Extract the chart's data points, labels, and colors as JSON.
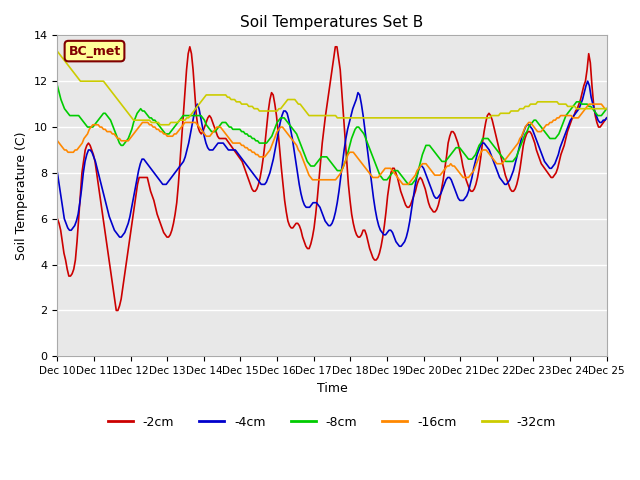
{
  "title": "Soil Temperatures Set B",
  "xlabel": "Time",
  "ylabel": "Soil Temperature (C)",
  "annotation": "BC_met",
  "ylim": [
    0,
    14
  ],
  "yticks": [
    0,
    2,
    4,
    6,
    8,
    10,
    12,
    14
  ],
  "background_color": "#ffffff",
  "plot_bg_color": "#e8e8e8",
  "grid_color": "#ffffff",
  "colors": {
    "-2cm": "#cc0000",
    "-4cm": "#0000cc",
    "-8cm": "#00cc00",
    "-16cm": "#ff8800",
    "-32cm": "#cccc00"
  },
  "x_labels": [
    "Dec 10",
    "Dec 11",
    "Dec 12",
    "Dec 13",
    "Dec 14",
    "Dec 15",
    "Dec 16",
    "Dec 17",
    "Dec 18",
    "Dec 19",
    "Dec 20",
    "Dec 21",
    "Dec 22",
    "Dec 23",
    "Dec 24",
    "Dec 25"
  ],
  "series": {
    "-2cm": [
      6.0,
      5.8,
      5.5,
      5.0,
      4.5,
      4.2,
      3.8,
      3.5,
      3.5,
      3.6,
      3.8,
      4.2,
      5.0,
      6.0,
      7.0,
      8.0,
      8.5,
      9.0,
      9.2,
      9.3,
      9.2,
      9.0,
      8.8,
      8.5,
      8.0,
      7.5,
      7.0,
      6.5,
      6.0,
      5.5,
      5.0,
      4.5,
      4.0,
      3.5,
      3.0,
      2.5,
      2.0,
      2.0,
      2.2,
      2.5,
      3.0,
      3.5,
      4.0,
      4.5,
      5.0,
      5.5,
      6.0,
      6.5,
      7.0,
      7.5,
      7.8,
      7.8,
      7.8,
      7.8,
      7.8,
      7.8,
      7.5,
      7.2,
      7.0,
      6.8,
      6.5,
      6.2,
      6.0,
      5.8,
      5.6,
      5.4,
      5.3,
      5.2,
      5.2,
      5.3,
      5.5,
      5.8,
      6.2,
      6.7,
      7.5,
      8.5,
      9.5,
      10.5,
      11.5,
      12.5,
      13.2,
      13.5,
      13.2,
      12.5,
      11.5,
      10.5,
      10.0,
      9.8,
      9.7,
      9.8,
      10.0,
      10.2,
      10.4,
      10.5,
      10.4,
      10.2,
      10.0,
      9.8,
      9.6,
      9.5,
      9.5,
      9.5,
      9.5,
      9.5,
      9.4,
      9.3,
      9.2,
      9.1,
      9.0,
      8.9,
      8.8,
      8.7,
      8.6,
      8.5,
      8.3,
      8.1,
      7.9,
      7.7,
      7.5,
      7.3,
      7.2,
      7.2,
      7.3,
      7.5,
      7.8,
      8.2,
      8.7,
      9.3,
      10.0,
      10.7,
      11.2,
      11.5,
      11.4,
      11.0,
      10.5,
      9.8,
      9.0,
      8.2,
      7.5,
      6.8,
      6.3,
      5.9,
      5.7,
      5.6,
      5.6,
      5.7,
      5.8,
      5.8,
      5.7,
      5.5,
      5.2,
      5.0,
      4.8,
      4.7,
      4.7,
      4.9,
      5.2,
      5.6,
      6.2,
      6.9,
      7.7,
      8.5,
      9.3,
      9.9,
      10.5,
      11.0,
      11.5,
      12.0,
      12.5,
      13.0,
      13.5,
      13.5,
      13.0,
      12.5,
      11.5,
      10.5,
      9.5,
      8.5,
      7.5,
      6.8,
      6.2,
      5.8,
      5.5,
      5.3,
      5.2,
      5.2,
      5.3,
      5.5,
      5.5,
      5.3,
      5.0,
      4.7,
      4.5,
      4.3,
      4.2,
      4.2,
      4.3,
      4.5,
      4.8,
      5.2,
      5.7,
      6.3,
      7.0,
      7.5,
      8.0,
      8.2,
      8.2,
      8.0,
      7.8,
      7.5,
      7.2,
      7.0,
      6.8,
      6.6,
      6.5,
      6.5,
      6.6,
      6.8,
      7.0,
      7.2,
      7.5,
      7.7,
      7.8,
      7.7,
      7.5,
      7.3,
      7.0,
      6.7,
      6.5,
      6.4,
      6.3,
      6.3,
      6.4,
      6.6,
      6.9,
      7.3,
      7.7,
      8.2,
      8.7,
      9.3,
      9.6,
      9.8,
      9.8,
      9.7,
      9.5,
      9.3,
      9.0,
      8.7,
      8.3,
      8.0,
      7.7,
      7.5,
      7.3,
      7.2,
      7.2,
      7.3,
      7.5,
      7.8,
      8.2,
      8.7,
      9.3,
      9.8,
      10.2,
      10.5,
      10.6,
      10.5,
      10.3,
      10.0,
      9.7,
      9.4,
      9.1,
      8.8,
      8.5,
      8.2,
      7.9,
      7.7,
      7.5,
      7.3,
      7.2,
      7.2,
      7.3,
      7.5,
      7.8,
      8.2,
      8.7,
      9.2,
      9.5,
      9.7,
      9.8,
      9.8,
      9.7,
      9.5,
      9.3,
      9.0,
      8.8,
      8.6,
      8.4,
      8.3,
      8.2,
      8.1,
      8.0,
      7.9,
      7.8,
      7.8,
      7.9,
      8.0,
      8.2,
      8.5,
      8.8,
      9.0,
      9.2,
      9.5,
      9.8,
      10.0,
      10.2,
      10.4,
      10.5,
      10.7,
      10.8,
      11.0,
      11.2,
      11.5,
      11.8,
      12.0,
      12.5,
      13.2,
      12.8,
      11.8,
      11.0,
      10.5,
      10.2,
      10.0,
      10.0,
      10.1,
      10.2,
      10.3,
      10.4
    ],
    "-4cm": [
      8.0,
      7.5,
      7.0,
      6.5,
      6.0,
      5.8,
      5.6,
      5.5,
      5.5,
      5.6,
      5.7,
      5.9,
      6.2,
      6.7,
      7.3,
      8.0,
      8.5,
      8.8,
      9.0,
      9.0,
      8.9,
      8.7,
      8.5,
      8.2,
      7.9,
      7.6,
      7.3,
      7.0,
      6.7,
      6.4,
      6.1,
      5.9,
      5.7,
      5.5,
      5.4,
      5.3,
      5.2,
      5.2,
      5.3,
      5.4,
      5.6,
      5.8,
      6.1,
      6.5,
      6.9,
      7.3,
      7.7,
      8.1,
      8.4,
      8.6,
      8.6,
      8.5,
      8.4,
      8.3,
      8.2,
      8.1,
      8.0,
      7.9,
      7.8,
      7.7,
      7.6,
      7.5,
      7.5,
      7.5,
      7.6,
      7.7,
      7.8,
      7.9,
      8.0,
      8.1,
      8.2,
      8.3,
      8.4,
      8.5,
      8.7,
      9.0,
      9.3,
      9.7,
      10.1,
      10.5,
      10.8,
      11.0,
      10.8,
      10.4,
      10.0,
      9.6,
      9.3,
      9.1,
      9.0,
      9.0,
      9.0,
      9.1,
      9.2,
      9.3,
      9.3,
      9.3,
      9.3,
      9.2,
      9.1,
      9.0,
      9.0,
      9.0,
      9.0,
      9.0,
      8.9,
      8.8,
      8.7,
      8.6,
      8.5,
      8.4,
      8.3,
      8.2,
      8.1,
      8.0,
      7.9,
      7.8,
      7.7,
      7.6,
      7.5,
      7.5,
      7.5,
      7.6,
      7.8,
      8.0,
      8.3,
      8.6,
      9.0,
      9.4,
      9.8,
      10.2,
      10.5,
      10.7,
      10.7,
      10.6,
      10.3,
      9.9,
      9.5,
      9.0,
      8.5,
      8.0,
      7.5,
      7.1,
      6.8,
      6.6,
      6.5,
      6.5,
      6.5,
      6.6,
      6.7,
      6.7,
      6.7,
      6.6,
      6.5,
      6.3,
      6.1,
      5.9,
      5.8,
      5.7,
      5.7,
      5.8,
      6.0,
      6.3,
      6.7,
      7.2,
      7.8,
      8.4,
      9.0,
      9.5,
      9.9,
      10.2,
      10.5,
      10.8,
      11.0,
      11.2,
      11.5,
      11.4,
      11.0,
      10.5,
      9.9,
      9.3,
      8.7,
      8.1,
      7.5,
      6.9,
      6.4,
      6.0,
      5.7,
      5.5,
      5.4,
      5.3,
      5.3,
      5.4,
      5.5,
      5.5,
      5.4,
      5.2,
      5.0,
      4.9,
      4.8,
      4.8,
      4.9,
      5.0,
      5.2,
      5.5,
      5.9,
      6.4,
      6.9,
      7.4,
      7.8,
      8.1,
      8.3,
      8.3,
      8.2,
      8.0,
      7.8,
      7.6,
      7.4,
      7.2,
      7.0,
      6.9,
      6.9,
      7.0,
      7.1,
      7.3,
      7.5,
      7.7,
      7.8,
      7.8,
      7.7,
      7.5,
      7.3,
      7.1,
      6.9,
      6.8,
      6.8,
      6.8,
      6.9,
      7.0,
      7.2,
      7.5,
      7.8,
      8.2,
      8.5,
      8.8,
      9.0,
      9.2,
      9.3,
      9.3,
      9.2,
      9.1,
      9.0,
      8.8,
      8.6,
      8.4,
      8.2,
      8.0,
      7.8,
      7.7,
      7.6,
      7.5,
      7.5,
      7.6,
      7.7,
      7.9,
      8.1,
      8.4,
      8.7,
      9.0,
      9.3,
      9.6,
      9.8,
      10.0,
      10.1,
      10.1,
      10.0,
      9.9,
      9.7,
      9.5,
      9.3,
      9.1,
      8.9,
      8.7,
      8.5,
      8.4,
      8.3,
      8.2,
      8.2,
      8.3,
      8.4,
      8.6,
      8.8,
      9.1,
      9.3,
      9.5,
      9.7,
      9.9,
      10.1,
      10.3,
      10.4,
      10.5,
      10.6,
      10.7,
      10.8,
      11.0,
      11.2,
      11.5,
      11.8,
      12.0,
      11.8,
      11.3,
      11.0,
      10.7,
      10.5,
      10.3,
      10.2,
      10.2,
      10.3,
      10.3,
      10.4
    ],
    "-8cm": [
      11.8,
      11.5,
      11.2,
      11.0,
      10.8,
      10.7,
      10.6,
      10.5,
      10.5,
      10.5,
      10.5,
      10.5,
      10.5,
      10.4,
      10.3,
      10.2,
      10.1,
      10.0,
      10.0,
      10.0,
      10.0,
      10.1,
      10.2,
      10.3,
      10.4,
      10.5,
      10.6,
      10.6,
      10.5,
      10.4,
      10.3,
      10.1,
      9.9,
      9.7,
      9.5,
      9.3,
      9.2,
      9.2,
      9.3,
      9.4,
      9.5,
      9.7,
      9.9,
      10.2,
      10.4,
      10.6,
      10.7,
      10.8,
      10.7,
      10.7,
      10.6,
      10.5,
      10.4,
      10.4,
      10.3,
      10.3,
      10.2,
      10.1,
      10.0,
      9.9,
      9.8,
      9.7,
      9.7,
      9.7,
      9.8,
      9.9,
      10.0,
      10.1,
      10.2,
      10.3,
      10.4,
      10.5,
      10.5,
      10.5,
      10.5,
      10.5,
      10.5,
      10.5,
      10.5,
      10.5,
      10.5,
      10.5,
      10.4,
      10.3,
      10.1,
      10.0,
      9.9,
      9.8,
      9.8,
      9.8,
      9.9,
      10.0,
      10.1,
      10.2,
      10.2,
      10.2,
      10.1,
      10.0,
      10.0,
      9.9,
      9.9,
      9.9,
      9.9,
      9.9,
      9.8,
      9.8,
      9.7,
      9.7,
      9.6,
      9.6,
      9.5,
      9.5,
      9.4,
      9.4,
      9.3,
      9.3,
      9.3,
      9.3,
      9.3,
      9.4,
      9.5,
      9.6,
      9.8,
      10.0,
      10.2,
      10.3,
      10.4,
      10.4,
      10.4,
      10.3,
      10.2,
      10.1,
      10.0,
      9.9,
      9.8,
      9.7,
      9.5,
      9.3,
      9.1,
      8.9,
      8.7,
      8.5,
      8.4,
      8.3,
      8.3,
      8.3,
      8.4,
      8.5,
      8.6,
      8.7,
      8.7,
      8.7,
      8.7,
      8.6,
      8.5,
      8.4,
      8.3,
      8.2,
      8.1,
      8.1,
      8.1,
      8.2,
      8.4,
      8.6,
      8.9,
      9.2,
      9.5,
      9.7,
      9.9,
      10.0,
      10.0,
      9.9,
      9.8,
      9.7,
      9.5,
      9.3,
      9.1,
      8.9,
      8.7,
      8.5,
      8.3,
      8.1,
      7.9,
      7.8,
      7.7,
      7.7,
      7.7,
      7.8,
      7.9,
      8.0,
      8.1,
      8.1,
      8.1,
      8.0,
      7.9,
      7.8,
      7.7,
      7.6,
      7.5,
      7.5,
      7.5,
      7.6,
      7.7,
      7.9,
      8.2,
      8.5,
      8.8,
      9.0,
      9.2,
      9.2,
      9.2,
      9.1,
      9.0,
      8.9,
      8.8,
      8.7,
      8.6,
      8.5,
      8.5,
      8.5,
      8.6,
      8.7,
      8.8,
      8.9,
      9.0,
      9.1,
      9.1,
      9.1,
      9.0,
      8.9,
      8.8,
      8.7,
      8.6,
      8.6,
      8.6,
      8.7,
      8.8,
      9.0,
      9.2,
      9.3,
      9.5,
      9.5,
      9.5,
      9.5,
      9.4,
      9.3,
      9.2,
      9.1,
      9.0,
      8.9,
      8.8,
      8.7,
      8.6,
      8.5,
      8.5,
      8.5,
      8.5,
      8.5,
      8.6,
      8.7,
      8.9,
      9.1,
      9.3,
      9.5,
      9.7,
      9.8,
      10.0,
      10.1,
      10.2,
      10.3,
      10.3,
      10.2,
      10.1,
      10.0,
      9.9,
      9.8,
      9.7,
      9.6,
      9.5,
      9.5,
      9.5,
      9.5,
      9.6,
      9.7,
      9.9,
      10.1,
      10.3,
      10.5,
      10.6,
      10.7,
      10.8,
      10.9,
      11.0,
      11.1,
      11.1,
      11.1,
      11.0,
      11.0,
      11.0,
      11.0,
      10.9,
      10.9,
      10.8,
      10.7,
      10.6,
      10.5,
      10.5,
      10.5,
      10.6,
      10.7,
      10.8
    ],
    "-16cm": [
      9.4,
      9.3,
      9.2,
      9.1,
      9.0,
      9.0,
      8.9,
      8.9,
      8.9,
      8.9,
      9.0,
      9.0,
      9.1,
      9.2,
      9.3,
      9.5,
      9.6,
      9.7,
      9.9,
      10.0,
      10.1,
      10.1,
      10.1,
      10.1,
      10.0,
      10.0,
      9.9,
      9.9,
      9.8,
      9.8,
      9.8,
      9.7,
      9.7,
      9.6,
      9.5,
      9.5,
      9.4,
      9.4,
      9.4,
      9.4,
      9.4,
      9.5,
      9.6,
      9.7,
      9.8,
      9.9,
      10.0,
      10.1,
      10.2,
      10.2,
      10.2,
      10.2,
      10.1,
      10.1,
      10.0,
      10.0,
      9.9,
      9.9,
      9.8,
      9.8,
      9.7,
      9.7,
      9.6,
      9.6,
      9.6,
      9.6,
      9.7,
      9.7,
      9.8,
      9.9,
      10.0,
      10.1,
      10.2,
      10.2,
      10.2,
      10.2,
      10.2,
      10.2,
      10.2,
      10.1,
      10.0,
      9.9,
      9.8,
      9.7,
      9.6,
      9.6,
      9.6,
      9.7,
      9.8,
      9.9,
      10.0,
      10.0,
      10.0,
      9.9,
      9.8,
      9.7,
      9.6,
      9.5,
      9.4,
      9.3,
      9.3,
      9.3,
      9.3,
      9.3,
      9.2,
      9.2,
      9.1,
      9.1,
      9.0,
      9.0,
      8.9,
      8.9,
      8.8,
      8.8,
      8.7,
      8.7,
      8.7,
      8.7,
      8.8,
      8.9,
      9.0,
      9.2,
      9.4,
      9.6,
      9.8,
      9.9,
      10.0,
      10.0,
      9.9,
      9.8,
      9.7,
      9.6,
      9.5,
      9.4,
      9.3,
      9.2,
      9.0,
      8.9,
      8.7,
      8.5,
      8.3,
      8.1,
      7.9,
      7.8,
      7.7,
      7.7,
      7.7,
      7.7,
      7.7,
      7.7,
      7.7,
      7.7,
      7.7,
      7.7,
      7.7,
      7.7,
      7.7,
      7.7,
      7.8,
      7.9,
      8.0,
      8.2,
      8.4,
      8.6,
      8.8,
      8.9,
      8.9,
      8.9,
      8.8,
      8.7,
      8.6,
      8.5,
      8.4,
      8.3,
      8.2,
      8.1,
      8.0,
      7.9,
      7.8,
      7.8,
      7.8,
      7.8,
      7.9,
      8.0,
      8.1,
      8.2,
      8.2,
      8.2,
      8.2,
      8.1,
      8.0,
      7.9,
      7.8,
      7.7,
      7.6,
      7.5,
      7.5,
      7.5,
      7.5,
      7.6,
      7.7,
      7.8,
      7.9,
      8.1,
      8.2,
      8.3,
      8.4,
      8.4,
      8.4,
      8.3,
      8.2,
      8.1,
      8.0,
      7.9,
      7.9,
      7.9,
      7.9,
      8.0,
      8.1,
      8.2,
      8.3,
      8.3,
      8.4,
      8.3,
      8.3,
      8.2,
      8.1,
      8.0,
      7.9,
      7.8,
      7.8,
      7.8,
      7.8,
      7.9,
      8.0,
      8.1,
      8.3,
      8.5,
      8.7,
      8.9,
      9.0,
      9.0,
      9.0,
      8.9,
      8.8,
      8.7,
      8.6,
      8.5,
      8.4,
      8.4,
      8.4,
      8.4,
      8.5,
      8.6,
      8.7,
      8.8,
      8.9,
      9.0,
      9.1,
      9.2,
      9.3,
      9.5,
      9.6,
      9.8,
      10.0,
      10.1,
      10.2,
      10.2,
      10.1,
      10.0,
      9.9,
      9.8,
      9.8,
      9.8,
      9.9,
      10.0,
      10.1,
      10.1,
      10.2,
      10.2,
      10.3,
      10.3,
      10.4,
      10.4,
      10.5,
      10.5,
      10.5,
      10.5,
      10.5,
      10.5,
      10.5,
      10.4,
      10.4,
      10.4,
      10.4,
      10.5,
      10.6,
      10.7,
      10.8,
      10.9,
      11.0,
      11.0,
      11.0,
      11.0,
      11.0,
      11.0,
      11.0,
      11.0,
      10.9,
      10.8,
      10.8
    ],
    "-32cm": [
      13.3,
      13.2,
      13.1,
      13.0,
      12.9,
      12.8,
      12.7,
      12.6,
      12.5,
      12.4,
      12.3,
      12.2,
      12.1,
      12.0,
      12.0,
      12.0,
      12.0,
      12.0,
      12.0,
      12.0,
      12.0,
      12.0,
      12.0,
      12.0,
      12.0,
      12.0,
      12.0,
      11.9,
      11.8,
      11.7,
      11.6,
      11.5,
      11.4,
      11.3,
      11.2,
      11.1,
      11.0,
      10.9,
      10.8,
      10.7,
      10.6,
      10.5,
      10.4,
      10.3,
      10.3,
      10.3,
      10.3,
      10.3,
      10.3,
      10.3,
      10.3,
      10.3,
      10.3,
      10.2,
      10.2,
      10.2,
      10.2,
      10.2,
      10.1,
      10.1,
      10.1,
      10.1,
      10.1,
      10.1,
      10.2,
      10.2,
      10.2,
      10.2,
      10.2,
      10.3,
      10.3,
      10.3,
      10.3,
      10.4,
      10.4,
      10.5,
      10.6,
      10.7,
      10.8,
      10.9,
      11.0,
      11.1,
      11.2,
      11.3,
      11.4,
      11.4,
      11.4,
      11.4,
      11.4,
      11.4,
      11.4,
      11.4,
      11.4,
      11.4,
      11.4,
      11.4,
      11.3,
      11.3,
      11.2,
      11.2,
      11.2,
      11.1,
      11.1,
      11.1,
      11.0,
      11.0,
      11.0,
      11.0,
      10.9,
      10.9,
      10.9,
      10.8,
      10.8,
      10.8,
      10.7,
      10.7,
      10.7,
      10.7,
      10.7,
      10.7,
      10.7,
      10.7,
      10.7,
      10.7,
      10.7,
      10.8,
      10.8,
      10.9,
      11.0,
      11.1,
      11.2,
      11.2,
      11.2,
      11.2,
      11.2,
      11.1,
      11.0,
      11.0,
      10.9,
      10.8,
      10.7,
      10.6,
      10.5,
      10.5,
      10.5,
      10.5,
      10.5,
      10.5,
      10.5,
      10.5,
      10.5,
      10.5,
      10.5,
      10.5,
      10.5,
      10.5,
      10.5,
      10.5,
      10.4,
      10.4,
      10.4,
      10.4,
      10.4,
      10.4,
      10.4,
      10.4,
      10.4,
      10.4,
      10.4,
      10.4,
      10.4,
      10.4,
      10.4,
      10.4,
      10.4,
      10.4,
      10.4,
      10.4,
      10.4,
      10.4,
      10.4,
      10.4,
      10.4,
      10.4,
      10.4,
      10.4,
      10.4,
      10.4,
      10.4,
      10.4,
      10.4,
      10.4,
      10.4,
      10.4,
      10.4,
      10.4,
      10.4,
      10.4,
      10.4,
      10.4,
      10.4,
      10.4,
      10.4,
      10.4,
      10.4,
      10.4,
      10.4,
      10.4,
      10.4,
      10.4,
      10.4,
      10.4,
      10.4,
      10.4,
      10.4,
      10.4,
      10.4,
      10.4,
      10.4,
      10.4,
      10.4,
      10.4,
      10.4,
      10.4,
      10.4,
      10.4,
      10.4,
      10.4,
      10.4,
      10.4,
      10.4,
      10.4,
      10.4,
      10.4,
      10.4,
      10.4,
      10.4,
      10.4,
      10.4,
      10.4,
      10.4,
      10.4,
      10.4,
      10.4,
      10.4,
      10.5,
      10.5,
      10.5,
      10.5,
      10.5,
      10.6,
      10.6,
      10.6,
      10.6,
      10.6,
      10.6,
      10.7,
      10.7,
      10.7,
      10.7,
      10.7,
      10.8,
      10.8,
      10.8,
      10.9,
      10.9,
      10.9,
      11.0,
      11.0,
      11.0,
      11.0,
      11.1,
      11.1,
      11.1,
      11.1,
      11.1,
      11.1,
      11.1,
      11.1,
      11.1,
      11.1,
      11.1,
      11.1,
      11.0,
      11.0,
      11.0,
      11.0,
      11.0,
      10.9,
      10.9,
      10.9,
      10.9,
      10.9,
      10.8,
      10.8,
      10.8,
      10.8,
      10.8,
      10.8,
      10.8,
      10.8,
      10.8,
      10.8,
      10.8,
      10.8,
      10.8,
      10.8,
      10.8,
      10.8,
      10.8,
      10.8
    ]
  }
}
